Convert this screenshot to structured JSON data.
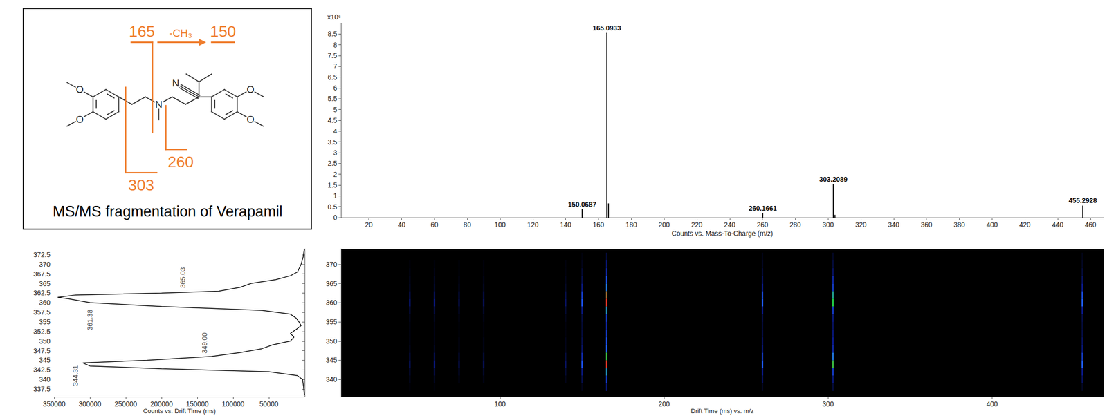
{
  "diagram": {
    "caption": "MS/MS fragmentation of Verapamil",
    "fragments": [
      {
        "label": "165",
        "loss": "-CH₃",
        "product": "150"
      },
      {
        "label": "260"
      },
      {
        "label": "303"
      }
    ],
    "atoms": {
      "oxygen": "O",
      "amine": "N",
      "nitrile": "N"
    }
  },
  "chart_data": [
    {
      "type": "bar",
      "y_label": "x10⁶",
      "x_label": "Counts vs. Mass-To-Charge (m/z)",
      "x": [
        150.0687,
        165.0933,
        166.1,
        260.1661,
        303.2089,
        304.2,
        455.2928
      ],
      "values": [
        0.38,
        8.55,
        0.65,
        0.2,
        1.55,
        0.12,
        0.55
      ],
      "peak_labels": [
        "150.0687",
        "165.0933",
        null,
        "260.1661",
        "303.2089",
        null,
        "455.2928"
      ],
      "color": "#000000",
      "xlim": [
        3,
        468
      ],
      "xticks": [
        20,
        40,
        60,
        80,
        100,
        120,
        140,
        160,
        180,
        200,
        220,
        240,
        260,
        280,
        300,
        320,
        340,
        360,
        380,
        400,
        420,
        440,
        460
      ],
      "ylim": [
        0,
        9
      ],
      "yticks": [
        0,
        0.5,
        1,
        1.5,
        2,
        2.5,
        3,
        3.5,
        4,
        4.5,
        5,
        5.5,
        6,
        6.5,
        7,
        7.5,
        8,
        8.5
      ],
      "grid": false
    },
    {
      "type": "line",
      "x_label": "Counts vs. Drift Time (ms)",
      "y": [
        336,
        338,
        340,
        341,
        342,
        342.8,
        343.5,
        344.31,
        345,
        346,
        347,
        348,
        349,
        350,
        351,
        352,
        353,
        354,
        355,
        356,
        357,
        358,
        359,
        360,
        361,
        361.38,
        362,
        362.5,
        363,
        364,
        365,
        366,
        367,
        368,
        370,
        372,
        374
      ],
      "x": [
        500,
        1500,
        3000,
        10000,
        50000,
        200000,
        300000,
        310000,
        220000,
        130000,
        90000,
        60000,
        45000,
        20000,
        15000,
        20000,
        12000,
        5000,
        8000,
        12000,
        20000,
        60000,
        200000,
        300000,
        330000,
        345000,
        320000,
        200000,
        120000,
        90000,
        75000,
        40000,
        20000,
        10000,
        5000,
        2000,
        500
      ],
      "color": "#000000",
      "annotations": [
        {
          "text": "344.31",
          "x": 320000,
          "y": 341
        },
        {
          "text": "349.00",
          "x": 140000,
          "y": 349.5
        },
        {
          "text": "361.38",
          "x": 300000,
          "y": 355.5
        },
        {
          "text": "365.03",
          "x": 170000,
          "y": 366.5
        }
      ],
      "xlim": [
        0,
        350000
      ],
      "xticks": [
        50000,
        100000,
        150000,
        200000,
        250000,
        300000,
        350000
      ],
      "ylim": [
        335.5,
        374
      ],
      "yticks": [
        337.5,
        340,
        342.5,
        345,
        347.5,
        350,
        352.5,
        355,
        357.5,
        360,
        362.5,
        365,
        367.5,
        370,
        372.5
      ],
      "grid": false
    },
    {
      "type": "heatmap",
      "x_label": "Drift Time (ms) vs. m/z",
      "x": [
        45,
        60,
        75,
        90,
        140,
        150,
        165,
        260,
        303,
        455
      ],
      "y": [
        338,
        340,
        342,
        344,
        346,
        348,
        350,
        352,
        354,
        356,
        358,
        360,
        362,
        364,
        366,
        368,
        370,
        372
      ],
      "cells": [
        [
          1,
          3,
          5,
          10,
          6,
          3,
          2,
          2,
          2,
          3,
          6,
          12,
          8,
          4,
          3,
          2,
          1,
          0
        ],
        [
          1,
          3,
          6,
          12,
          7,
          3,
          2,
          2,
          2,
          3,
          6,
          12,
          8,
          4,
          3,
          2,
          1,
          0
        ],
        [
          0,
          2,
          4,
          8,
          5,
          2,
          2,
          1,
          1,
          2,
          4,
          8,
          6,
          3,
          2,
          1,
          1,
          0
        ],
        [
          0,
          2,
          4,
          8,
          5,
          2,
          2,
          1,
          1,
          2,
          4,
          8,
          6,
          3,
          2,
          1,
          1,
          0
        ],
        [
          0,
          2,
          4,
          8,
          5,
          2,
          2,
          1,
          1,
          2,
          4,
          8,
          6,
          3,
          2,
          1,
          1,
          0
        ],
        [
          2,
          6,
          10,
          25,
          15,
          8,
          6,
          5,
          4,
          5,
          10,
          25,
          20,
          10,
          6,
          4,
          2,
          1
        ],
        [
          10,
          20,
          40,
          95,
          60,
          30,
          25,
          20,
          15,
          20,
          40,
          95,
          80,
          35,
          25,
          15,
          10,
          5
        ],
        [
          3,
          8,
          12,
          30,
          20,
          10,
          8,
          6,
          5,
          6,
          12,
          30,
          25,
          12,
          8,
          5,
          3,
          2
        ],
        [
          5,
          10,
          20,
          60,
          35,
          15,
          12,
          10,
          8,
          10,
          20,
          55,
          45,
          20,
          15,
          8,
          5,
          3
        ],
        [
          3,
          8,
          12,
          30,
          20,
          10,
          8,
          6,
          5,
          6,
          12,
          30,
          25,
          12,
          8,
          5,
          3,
          2
        ]
      ],
      "color_range": [
        0,
        100
      ],
      "xlim": [
        3,
        468
      ],
      "xticks": [
        100,
        200,
        300,
        400
      ],
      "ylim": [
        335.5,
        374
      ],
      "yticks": [
        340,
        345,
        350,
        355,
        360,
        365,
        370
      ],
      "grid": false
    }
  ]
}
